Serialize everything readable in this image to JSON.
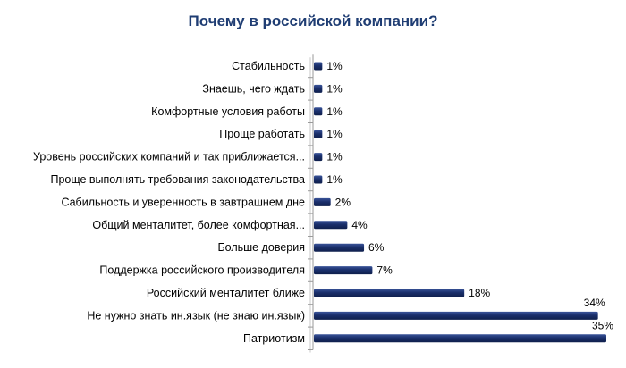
{
  "chart_data": {
    "type": "bar",
    "orientation": "horizontal",
    "title": "Почему в российской компании?",
    "categories": [
      "Стабильность",
      "Знаешь, чего ждать",
      "Комфортные условия работы",
      "Проще работать",
      "Уровень российских компаний и так приближается...",
      "Проще выполнять требования законодательства",
      "Сабильность и уверенность в завтрашнем дне",
      "Общий менталитет, более комфортная...",
      "Больше доверия",
      "Поддержка российского производителя",
      "Российский менталитет ближе",
      "Не нужно знать ин.язык (не знаю ин.язык)",
      "Патриотизм"
    ],
    "values": [
      1,
      1,
      1,
      1,
      1,
      1,
      2,
      4,
      6,
      7,
      18,
      34,
      35
    ],
    "value_labels": [
      "1%",
      "1%",
      "1%",
      "1%",
      "1%",
      "1%",
      "2%",
      "4%",
      "6%",
      "7%",
      "18%",
      "34%",
      "35%"
    ],
    "xlim": [
      0,
      35
    ],
    "grid": false,
    "legend": "none",
    "bar_color": "#1a2f6b",
    "title_color": "#1f3d73"
  }
}
